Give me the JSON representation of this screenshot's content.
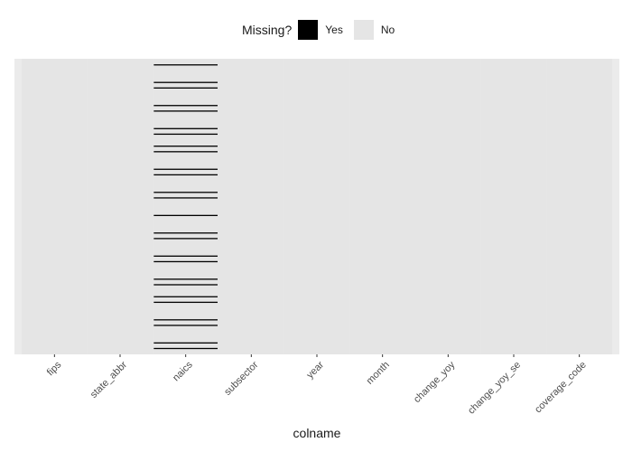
{
  "legend": {
    "title": "Missing?",
    "items": [
      {
        "label": "Yes",
        "color": "#000000"
      },
      {
        "label": "No",
        "color": "#e5e5e5"
      }
    ]
  },
  "chart_data": {
    "type": "heatmap",
    "xlabel": "colname",
    "ylabel": "",
    "categories": [
      "fips",
      "state_abbr",
      "naics",
      "subsector",
      "year",
      "month",
      "change_yoy",
      "change_yoy_se",
      "coverage_code"
    ],
    "colors": {
      "missing": "#000000",
      "present": "#e5e5e5",
      "panel_background": "#ebebeb"
    },
    "legend_position": "top",
    "grid": false,
    "n_rows": 320,
    "missing": [
      {
        "column": "naics",
        "rows": [
          6,
          25,
          31,
          50,
          56,
          75,
          81,
          94,
          100,
          119,
          125,
          144,
          150,
          169,
          188,
          194,
          213,
          219,
          238,
          244,
          257,
          263,
          282,
          288,
          307,
          313
        ]
      }
    ]
  }
}
